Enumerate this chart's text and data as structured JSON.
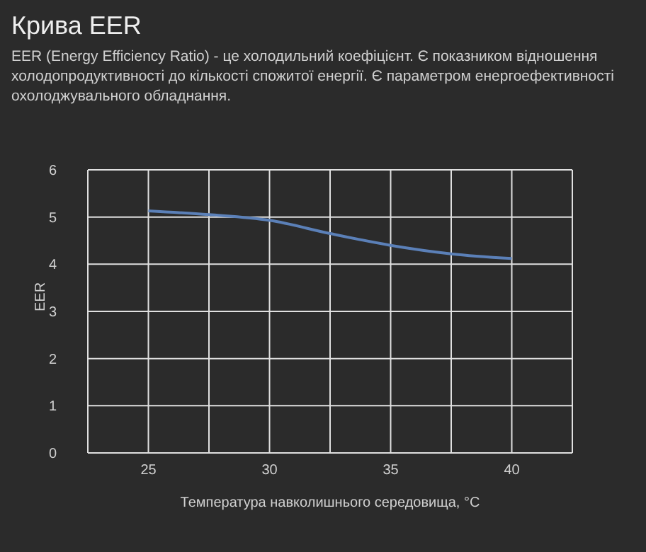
{
  "chart_data": {
    "type": "line",
    "title": "Крива EER",
    "subtitle": "EER (Energy Efficiency Ratio) - це холодильний коефіцієнт. Є показником відношення холодопродуктивності до кількості спожитої енергії. Є параметром енергоефективності охолоджувального обладнання.",
    "xlabel": "Температура навколишнього середовища, °C",
    "ylabel": "EER",
    "x": [
      25,
      27.5,
      30,
      32.5,
      35,
      37.5,
      40
    ],
    "series": [
      {
        "color": "#5b80b8",
        "values": [
          5.13,
          5.05,
          4.93,
          4.65,
          4.4,
          4.22,
          4.12
        ]
      }
    ],
    "xlim": [
      22.5,
      42.5
    ],
    "xticks": [
      25,
      {
        "value": 27.5,
        "label": null
      },
      30,
      {
        "value": 32.5,
        "label": null
      },
      35,
      {
        "value": 37.5,
        "label": null
      },
      40
    ],
    "ylim": [
      0,
      6
    ],
    "yticks": [
      0,
      1,
      2,
      3,
      4,
      5,
      6
    ],
    "grid": true,
    "marker": "none",
    "line_style": "solid"
  }
}
